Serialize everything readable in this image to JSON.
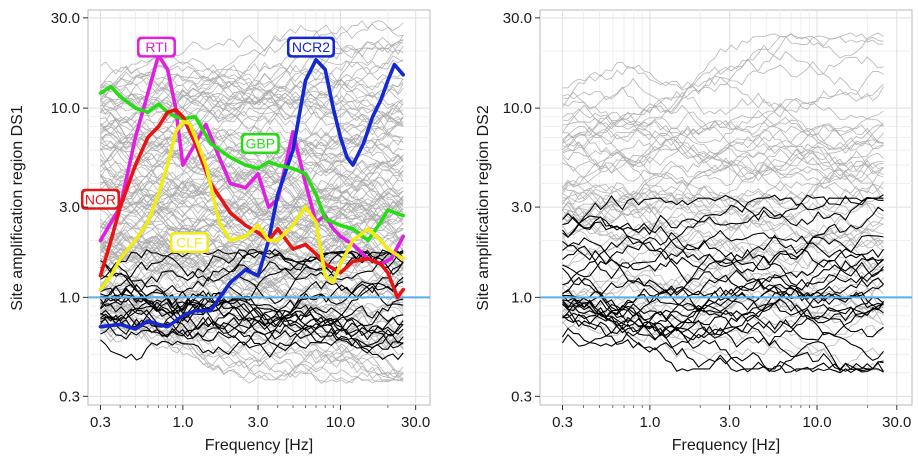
{
  "chart_data": [
    {
      "type": "line",
      "panel": "left",
      "xlabel": "Frequency [Hz]",
      "ylabel": "Site amplification region DS1",
      "x_scale": "log",
      "y_scale": "log",
      "xlim": [
        0.25,
        37
      ],
      "ylim": [
        0.27,
        33
      ],
      "x_ticks": [
        0.3,
        1.0,
        3.0,
        10.0,
        30.0
      ],
      "x_tick_labels": [
        "0.3",
        "1.0",
        "3.0",
        "10.0",
        "30.0"
      ],
      "y_ticks": [
        0.3,
        1.0,
        3.0,
        10.0,
        30.0
      ],
      "y_tick_labels": [
        "0.3",
        "1.0",
        "3.0",
        "10.0",
        "30.0"
      ],
      "grid": true,
      "reference_line": {
        "y": 1.0,
        "color": "#5aaee6"
      },
      "background_curves": {
        "count": 140,
        "color": "#a9a9a9",
        "y_range": [
          0.35,
          30
        ],
        "x_range": [
          0.3,
          25
        ]
      },
      "black_curves": {
        "count": 20,
        "color": "#000000",
        "y_range": [
          0.45,
          1.8
        ],
        "x_range": [
          0.3,
          25
        ]
      },
      "series": [
        {
          "name": "RTI",
          "color": "#e020e0",
          "x": [
            0.3,
            0.4,
            0.5,
            0.6,
            0.7,
            0.8,
            0.9,
            1.0,
            1.2,
            1.4,
            1.7,
            2.0,
            2.5,
            3.0,
            3.5,
            4.0,
            5.0,
            6.0,
            7.0,
            8.0,
            9.0,
            10.0,
            12.0,
            15.0,
            18.0,
            21.0,
            25.0
          ],
          "y": [
            2.0,
            3.0,
            7.0,
            12.0,
            19.0,
            16.0,
            10.0,
            5.0,
            6.5,
            8.2,
            5.5,
            4.0,
            3.8,
            4.5,
            3.0,
            3.3,
            7.5,
            4.0,
            2.5,
            2.7,
            2.3,
            2.1,
            1.9,
            1.6,
            1.5,
            1.6,
            2.1
          ]
        },
        {
          "name": "NCR2",
          "color": "#1428d2",
          "x": [
            0.3,
            0.4,
            0.5,
            0.6,
            0.7,
            0.8,
            1.0,
            1.2,
            1.5,
            2.0,
            2.5,
            3.0,
            3.5,
            4.0,
            5.0,
            6.0,
            7.0,
            8.0,
            9.0,
            10.0,
            11.0,
            12.0,
            14.0,
            16.0,
            18.0,
            20.0,
            22.0,
            25.0
          ],
          "y": [
            0.7,
            0.72,
            0.68,
            0.75,
            0.72,
            0.7,
            0.8,
            0.85,
            0.85,
            1.2,
            1.4,
            1.3,
            2.0,
            3.5,
            6.0,
            14.0,
            18.0,
            16.0,
            10.0,
            7.0,
            5.5,
            5.0,
            6.5,
            9.0,
            11.0,
            14.0,
            17.0,
            15.0
          ]
        },
        {
          "name": "GBP",
          "color": "#28dc14",
          "x": [
            0.3,
            0.35,
            0.4,
            0.5,
            0.6,
            0.7,
            0.8,
            0.9,
            1.0,
            1.2,
            1.5,
            2.0,
            2.5,
            3.0,
            3.5,
            4.0,
            5.0,
            6.0,
            7.0,
            8.0,
            10.0,
            12.0,
            15.0,
            18.0,
            20.0,
            25.0
          ],
          "y": [
            12.0,
            13.0,
            11.5,
            10.0,
            9.5,
            10.5,
            9.5,
            9.0,
            8.8,
            9.0,
            6.5,
            5.5,
            5.0,
            4.8,
            5.2,
            5.0,
            4.8,
            4.5,
            3.5,
            2.6,
            2.4,
            2.3,
            2.0,
            2.5,
            2.9,
            2.7
          ]
        },
        {
          "name": "NOR",
          "color": "#e61414",
          "x": [
            0.3,
            0.35,
            0.4,
            0.5,
            0.6,
            0.7,
            0.8,
            0.9,
            1.0,
            1.2,
            1.5,
            2.0,
            2.5,
            3.0,
            3.5,
            4.0,
            5.0,
            6.0,
            7.0,
            8.0,
            10.0,
            12.0,
            15.0,
            18.0,
            20.0,
            23.0,
            25.0
          ],
          "y": [
            1.3,
            2.0,
            3.0,
            5.0,
            7.0,
            8.0,
            9.5,
            9.8,
            9.0,
            6.5,
            4.0,
            2.8,
            2.4,
            2.2,
            2.0,
            2.3,
            1.8,
            1.9,
            1.7,
            1.5,
            1.35,
            1.55,
            1.6,
            1.5,
            1.35,
            1.0,
            1.1
          ]
        },
        {
          "name": "CLF",
          "color": "#f0ec14",
          "x": [
            0.3,
            0.35,
            0.4,
            0.5,
            0.6,
            0.7,
            0.8,
            0.9,
            1.0,
            1.1,
            1.2,
            1.4,
            1.7,
            2.0,
            2.5,
            3.0,
            3.5,
            4.0,
            5.0,
            6.0,
            7.0,
            8.0,
            9.0,
            10.0,
            12.0,
            15.0,
            18.0,
            20.0,
            25.0
          ],
          "y": [
            1.1,
            1.3,
            1.6,
            2.0,
            2.5,
            3.5,
            5.0,
            7.5,
            8.5,
            8.3,
            7.0,
            5.0,
            2.5,
            2.0,
            2.1,
            2.4,
            2.0,
            2.0,
            2.4,
            3.0,
            2.5,
            1.3,
            1.2,
            1.5,
            2.0,
            2.3,
            2.0,
            1.8,
            1.6
          ]
        }
      ],
      "annotations": [
        {
          "text": "RTI",
          "color": "#e020e0"
        },
        {
          "text": "NCR2",
          "color": "#1428d2"
        },
        {
          "text": "GBP",
          "color": "#28dc14"
        },
        {
          "text": "NOR",
          "color": "#e61414"
        },
        {
          "text": "CLF",
          "color": "#f0ec14"
        }
      ]
    },
    {
      "type": "line",
      "panel": "right",
      "xlabel": "Frequency [Hz]",
      "ylabel": "Site amplification region DS2",
      "x_scale": "log",
      "y_scale": "log",
      "xlim": [
        0.22,
        37
      ],
      "ylim": [
        0.27,
        33
      ],
      "x_ticks": [
        0.3,
        1.0,
        3.0,
        10.0,
        30.0
      ],
      "x_tick_labels": [
        "0.3",
        "1.0",
        "3.0",
        "10.0",
        "30.0"
      ],
      "y_ticks": [
        0.3,
        1.0,
        3.0,
        10.0,
        30.0
      ],
      "y_tick_labels": [
        "0.3",
        "1.0",
        "3.0",
        "10.0",
        "30.0"
      ],
      "grid": true,
      "reference_line": {
        "y": 1.0,
        "color": "#5aaee6"
      },
      "background_curves": {
        "count": 60,
        "color": "#a9a9a9",
        "y_range": [
          0.4,
          25
        ],
        "x_range": [
          0.3,
          25
        ]
      },
      "black_curves": {
        "count": 25,
        "color": "#000000",
        "y_range": [
          0.4,
          3.5
        ],
        "x_range": [
          0.3,
          25
        ]
      },
      "series": []
    }
  ]
}
